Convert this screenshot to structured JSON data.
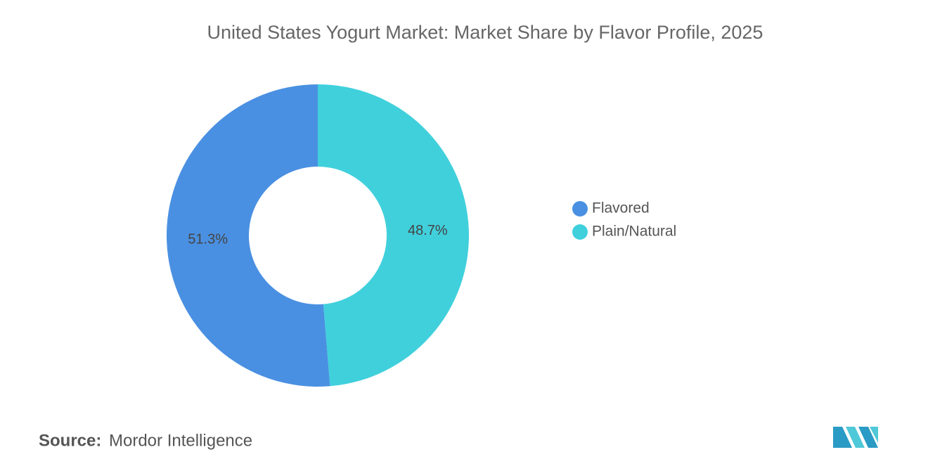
{
  "chart_data": {
    "type": "donut",
    "title": "United States Yogurt Market: Market Share by Flavor Profile, 2025",
    "categories": [
      "Flavored",
      "Plain/Natural"
    ],
    "values": [
      51.3,
      48.7
    ],
    "value_labels": [
      "51.3%",
      "48.7%"
    ],
    "colors": [
      "#4a90e2",
      "#40d0dc"
    ],
    "source_label": "Source:",
    "source": "Mordor Intelligence"
  }
}
